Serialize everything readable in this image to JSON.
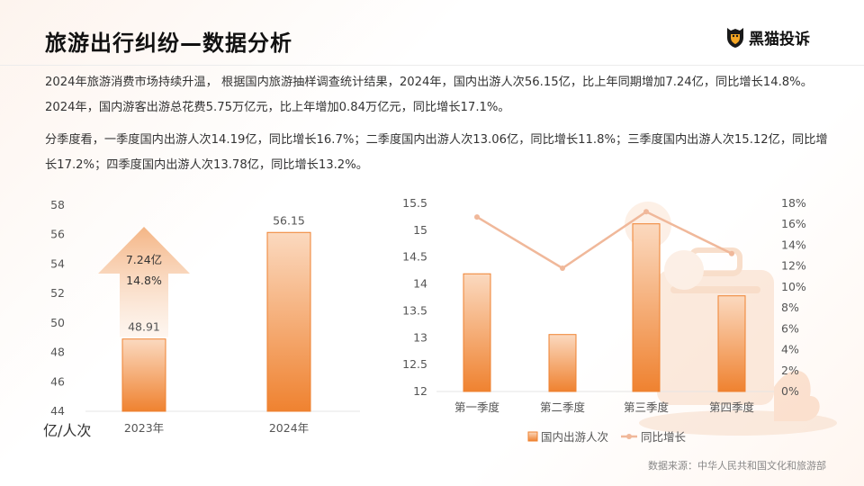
{
  "header": {
    "title": "旅游出行纠纷—数据分析",
    "logo_text": "黑猫投诉"
  },
  "paragraphs": [
    "2024年旅游消费市场持续升温， 根据国内旅游抽样调查统计结果，2024年，国内出游人次56.15亿，比上年同期增加7.24亿，同比增长14.8%。2024年，国内游客出游总花费5.75万亿元，比上年增加0.84万亿元，同比增长17.1%。",
    "分季度看，一季度国内出游人次14.19亿，同比增长16.7%；二季度国内出游人次13.06亿，同比增长11.8%；三季度国内出游人次15.12亿，同比增长17.2%；四季度国内出游人次13.78亿，同比增长13.2%。"
  ],
  "source": "数据来源：中华人民共和国文化和旅游部",
  "colors": {
    "bar_top": "#fbd9bf",
    "bar_bottom": "#ef8230",
    "line": "#f0b89a",
    "arrow": "#f6c9a3"
  },
  "chart_data": [
    {
      "type": "bar",
      "title": "",
      "ylabel": "亿/人次",
      "categories": [
        "2023年",
        "2024年"
      ],
      "values": [
        48.91,
        56.15
      ],
      "value_labels": [
        "48.91",
        "56.15"
      ],
      "ylim": [
        44,
        58
      ],
      "yticks": [
        "44",
        "46",
        "48",
        "50",
        "52",
        "54",
        "56",
        "58"
      ],
      "annotation": {
        "increase": "7.24亿",
        "growth": "14.8%"
      }
    },
    {
      "type": "bar+line",
      "categories": [
        "第一季度",
        "第二季度",
        "第三季度",
        "第四季度"
      ],
      "series": [
        {
          "name": "国内出游人次",
          "type": "bar",
          "axis": "left",
          "values": [
            14.19,
            13.06,
            15.12,
            13.78
          ]
        },
        {
          "name": "同比增长",
          "type": "line",
          "axis": "right",
          "values": [
            16.7,
            11.8,
            17.2,
            13.2
          ]
        }
      ],
      "ylim_left": [
        12,
        15.5
      ],
      "yticks_left": [
        "12",
        "12.5",
        "13",
        "13.5",
        "14",
        "14.5",
        "15",
        "15.5"
      ],
      "ylim_right": [
        0,
        18
      ],
      "yticks_right": [
        "0%",
        "2%",
        "4%",
        "6%",
        "8%",
        "10%",
        "12%",
        "14%",
        "16%",
        "18%"
      ],
      "legend_position": "bottom"
    }
  ]
}
